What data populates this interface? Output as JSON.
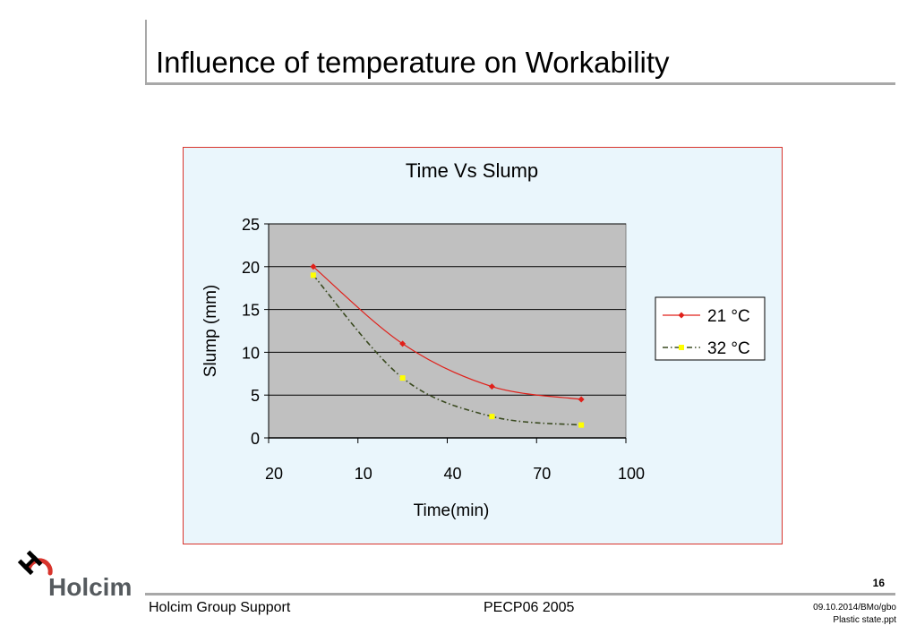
{
  "slide": {
    "title": "Influence of temperature on Workability",
    "page_number": "16"
  },
  "footer": {
    "left": "Holcim Group Support",
    "center": "PECP06 2005",
    "right_line1": "09.10.2014/BMo/gbo",
    "right_line2": "Plastic state.ppt"
  },
  "logo": {
    "text": "Holcim",
    "icon": "holcim-h-logo-icon"
  },
  "colors": {
    "title_rule": "#a8a8a8",
    "chart_border": "#d8342c",
    "chart_bg": "#eaf6fc",
    "plot_bg": "#c0c0c0",
    "series_21": "#e0201a",
    "series_32_line": "#3a4a20",
    "series_32_marker": "#ffff00"
  },
  "chart_data": {
    "type": "line",
    "title": "Time Vs Slump",
    "xlabel": "Time(min)",
    "ylabel": "Slump (mm)",
    "x_tick_labels": [
      "20",
      "10",
      "40",
      "70",
      "100"
    ],
    "y_ticks": [
      0,
      5,
      10,
      15,
      20,
      25
    ],
    "ylim": [
      0,
      25
    ],
    "grid": true,
    "legend_position": "right",
    "line_style": "smoothed",
    "series": [
      {
        "name": "21 °C",
        "x": [
          10,
          40,
          70,
          100
        ],
        "values": [
          20,
          11,
          6,
          4.5
        ],
        "marker": "diamond"
      },
      {
        "name": "32 °C",
        "x": [
          10,
          40,
          70,
          100
        ],
        "values": [
          19,
          7,
          2.5,
          1.5
        ],
        "marker": "square",
        "dash": "dash-dot"
      }
    ]
  }
}
